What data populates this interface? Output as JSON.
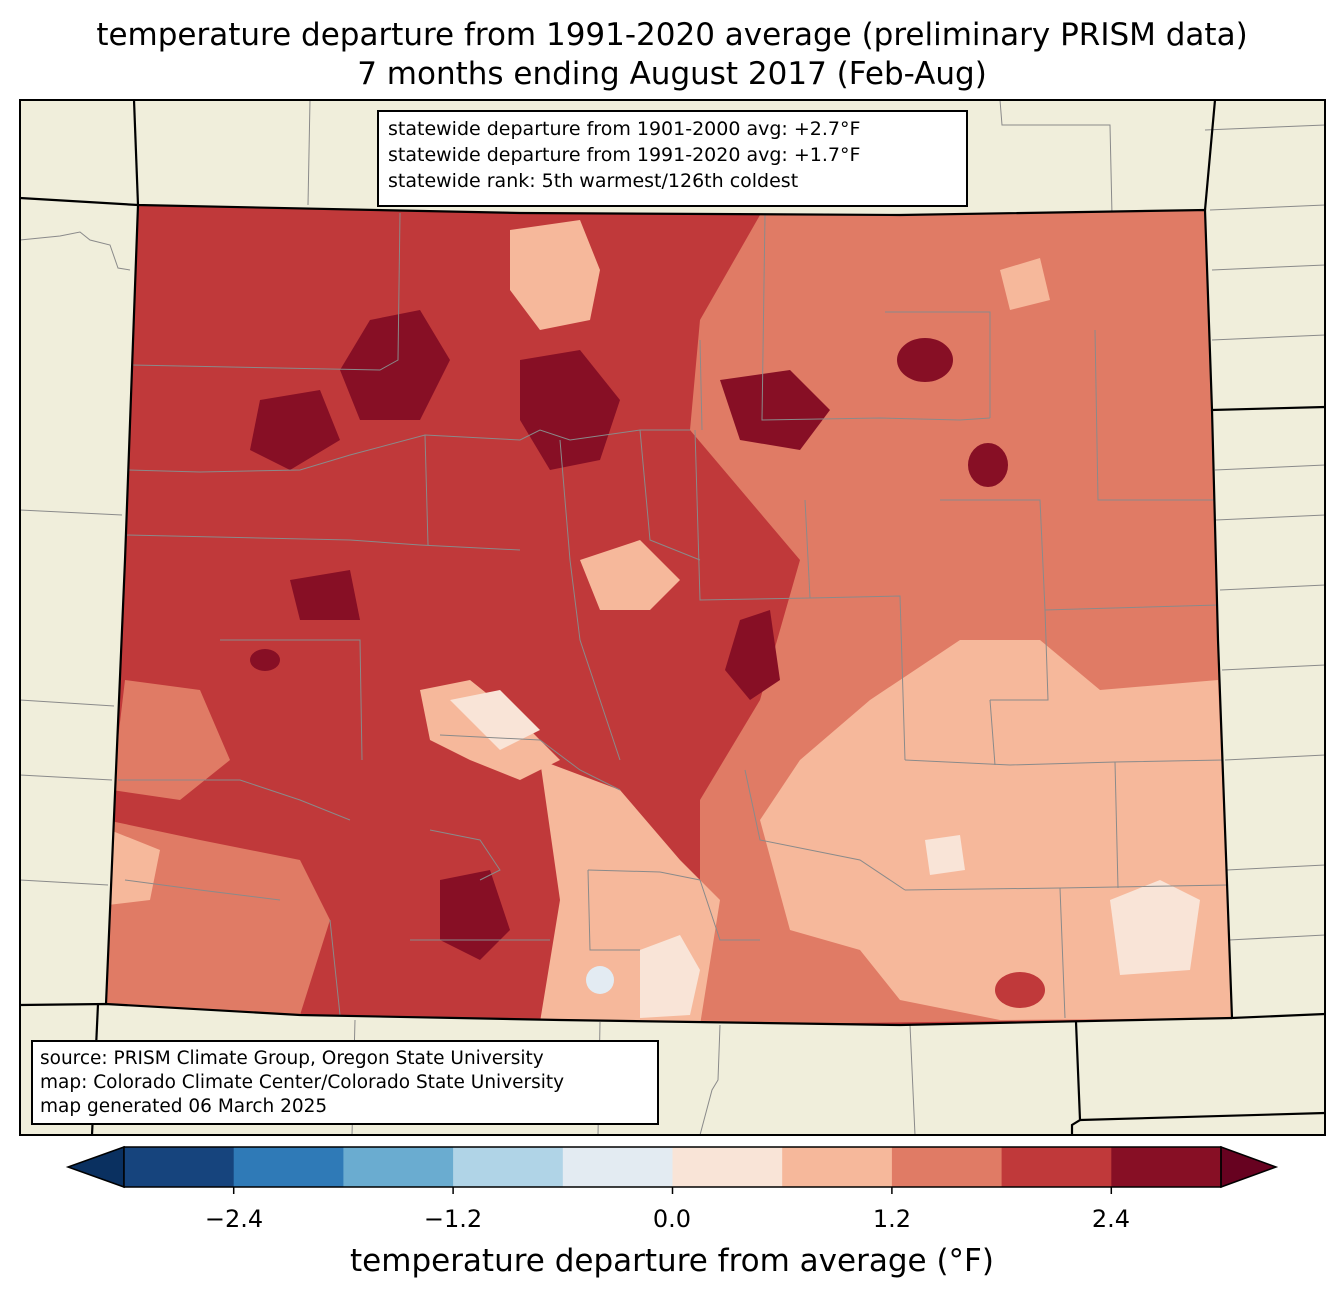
{
  "map": {
    "title_line1": "temperature departure from 1991-2020 average (preliminary PRISM data)",
    "title_line2": "7 months ending August 2017 (Feb-Aug)",
    "stats": [
      "statewide departure from 1901-2000 avg: +2.7°F",
      "statewide departure from 1991-2020 avg: +1.7°F",
      "statewide rank: 5th warmest/126th coldest"
    ],
    "source": [
      "source: PRISM Climate Group, Oregon State University",
      "map: Colorado Climate Center/Colorado State University",
      "map generated 06 March 2025"
    ],
    "background_color": "#f0eedb",
    "region_shown": "Colorado"
  },
  "colorbar": {
    "label": "temperature departure from average (°F)",
    "ticks": [
      "−2.4",
      "−1.2",
      "0.0",
      "1.2",
      "2.4"
    ],
    "tick_values": [
      -2.4,
      -1.2,
      0.0,
      1.2,
      2.4
    ],
    "bins": [
      -3.0,
      -2.4,
      -1.8,
      -1.2,
      -0.6,
      0.0,
      0.6,
      1.2,
      1.8,
      2.4,
      3.0
    ],
    "colors": [
      "#16447d",
      "#2f7ab7",
      "#6aacd0",
      "#b0d4e7",
      "#e3ebf2",
      "#f9e4d7",
      "#f6b89b",
      "#e07b65",
      "#c0393a",
      "#870f25"
    ],
    "under_color": "#0a3060",
    "over_color": "#670220"
  }
}
